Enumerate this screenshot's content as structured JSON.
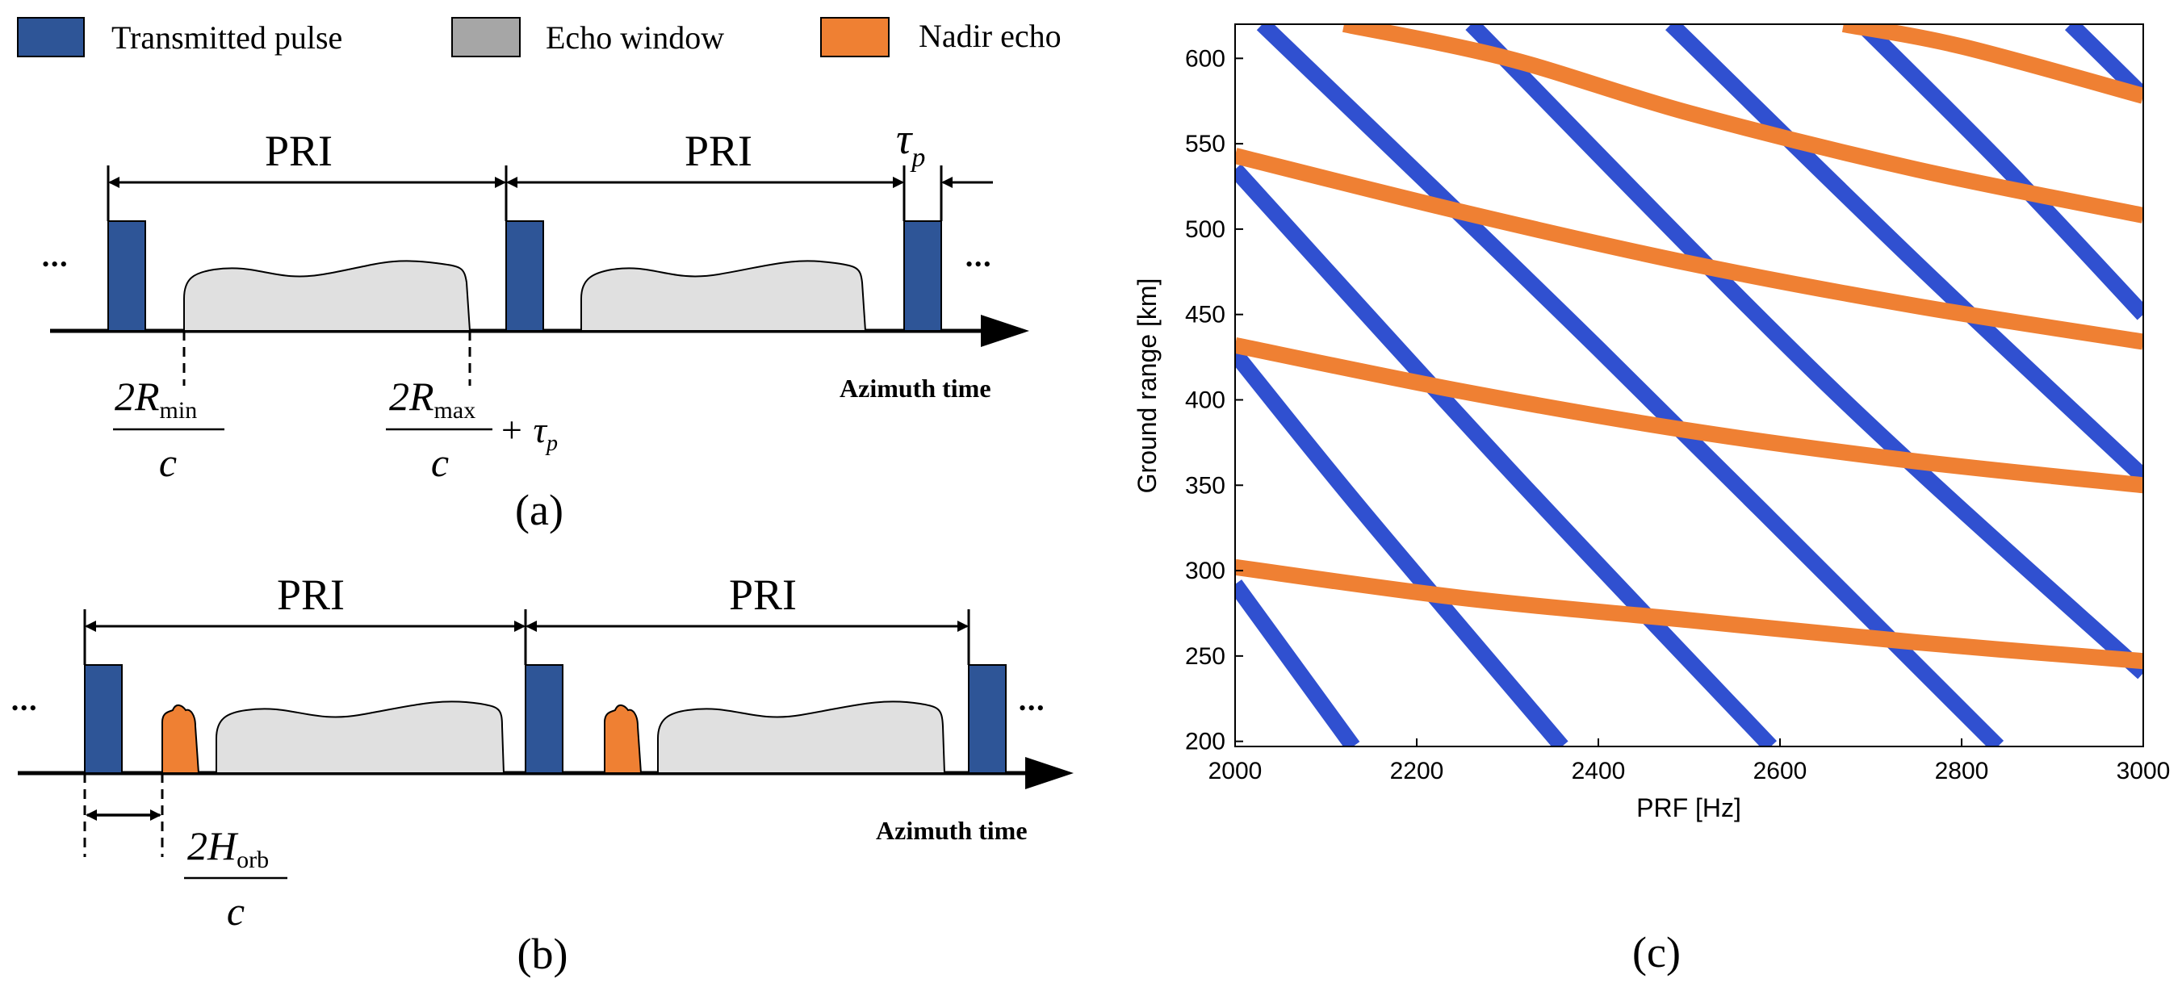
{
  "legend": {
    "items": [
      {
        "label": "Transmitted pulse",
        "color": "#2e5597"
      },
      {
        "label": "Echo window",
        "color": "#a6a6a6"
      },
      {
        "label": "Nadir echo",
        "color": "#ef8033"
      }
    ]
  },
  "panel_a": {
    "pri_1": "PRI",
    "pri_2": "PRI",
    "tau_symbol": "τ",
    "tau_sub": "p",
    "dots_left": "•••",
    "dots_right": "•••",
    "axis_label": "Azimuth time",
    "rmin_num": "2R",
    "rmin_sub": "min",
    "rmin_den": "c",
    "rmax_num": "2R",
    "rmax_sub": "max",
    "rmax_den": "c",
    "rmax_plus": "+ τ",
    "rmax_plus_sub": "p",
    "caption": "(a)"
  },
  "panel_b": {
    "pri_1": "PRI",
    "pri_2": "PRI",
    "dots_left": "•••",
    "dots_right": "•••",
    "axis_label": "Azimuth time",
    "horb_num": "2H",
    "horb_sub": "orb",
    "horb_den": "c",
    "caption": "(b)"
  },
  "panel_c": {
    "caption": "(c)"
  },
  "chart_data": {
    "type": "line",
    "title": "",
    "xlabel": "PRF [Hz]",
    "ylabel": "Ground range [km]",
    "xlim": [
      2000,
      3000
    ],
    "ylim": [
      197,
      620
    ],
    "xticks": [
      2000,
      2200,
      2400,
      2600,
      2800,
      3000
    ],
    "yticks": [
      200,
      250,
      300,
      350,
      400,
      450,
      500,
      550,
      600
    ],
    "series": [
      {
        "name": "Transmitted pulse band 1",
        "color": "#3050d0",
        "x": [
          2000,
          2130
        ],
        "y": [
          292,
          197
        ]
      },
      {
        "name": "Transmitted pulse band 2",
        "color": "#3050d0",
        "x": [
          2000,
          2140,
          2360
        ],
        "y": [
          427,
          335,
          197
        ]
      },
      {
        "name": "Transmitted pulse band 3",
        "color": "#3050d0",
        "x": [
          2000,
          2300,
          2590
        ],
        "y": [
          535,
          360,
          197
        ]
      },
      {
        "name": "Transmitted pulse band 4",
        "color": "#3050d0",
        "x": [
          2030,
          2400,
          2840
        ],
        "y": [
          620,
          430,
          197
        ]
      },
      {
        "name": "Transmitted pulse band 5",
        "color": "#3050d0",
        "x": [
          2260,
          2650,
          3000
        ],
        "y": [
          620,
          410,
          240
        ]
      },
      {
        "name": "Transmitted pulse band 6",
        "color": "#3050d0",
        "x": [
          2480,
          2750,
          3000
        ],
        "y": [
          620,
          480,
          355
        ]
      },
      {
        "name": "Transmitted pulse band 7",
        "color": "#3050d0",
        "x": [
          2690,
          2850,
          3000
        ],
        "y": [
          620,
          535,
          450
        ]
      },
      {
        "name": "Transmitted pulse band 8",
        "color": "#3050d0",
        "x": [
          2920,
          3000
        ],
        "y": [
          620,
          578
        ]
      },
      {
        "name": "Nadir echo 1",
        "color": "#ef8033",
        "x": [
          2000,
          2250,
          2500,
          2750,
          3000
        ],
        "y": [
          302,
          284,
          271,
          258,
          247
        ]
      },
      {
        "name": "Nadir echo 2",
        "color": "#ef8033",
        "x": [
          2000,
          2250,
          2500,
          2750,
          3000
        ],
        "y": [
          432,
          405,
          382,
          364,
          350
        ]
      },
      {
        "name": "Nadir echo 3",
        "color": "#ef8033",
        "x": [
          2000,
          2250,
          2500,
          2750,
          3000
        ],
        "y": [
          543,
          510,
          480,
          455,
          434
        ]
      },
      {
        "name": "Nadir echo 4",
        "color": "#ef8033",
        "x": [
          2120,
          2300,
          2500,
          2750,
          3000
        ],
        "y": [
          620,
          600,
          568,
          535,
          508
        ]
      },
      {
        "name": "Nadir echo 5",
        "color": "#ef8033",
        "x": [
          2670,
          2800,
          3000
        ],
        "y": [
          620,
          607,
          578
        ]
      }
    ]
  }
}
